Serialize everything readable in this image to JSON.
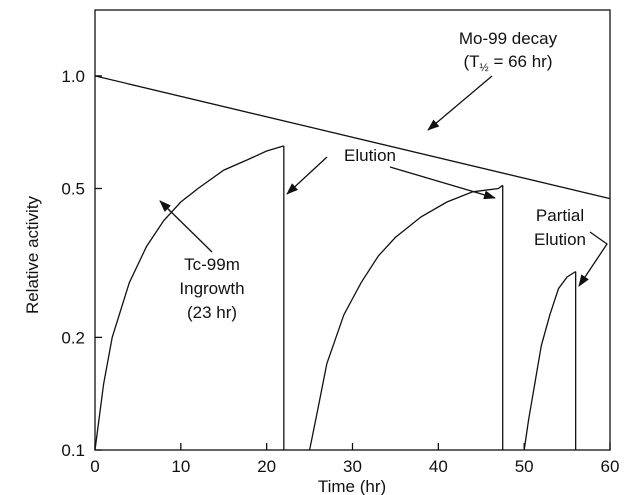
{
  "chart_data": {
    "type": "line",
    "title": "",
    "xlabel": "Time (hr)",
    "ylabel": "Relative activity",
    "x_scale": "linear",
    "y_scale": "log",
    "xlim": [
      0,
      60
    ],
    "ylim": [
      0.1,
      1.5
    ],
    "x_ticks": [
      "0",
      "10",
      "20",
      "30",
      "40",
      "50",
      "60"
    ],
    "y_ticks": [
      "0.1",
      "0.2",
      "0.5",
      "1.0"
    ],
    "x_tick_values": [
      0,
      10,
      20,
      30,
      40,
      50,
      60
    ],
    "y_tick_values": [
      0.1,
      0.2,
      0.5,
      1.0
    ],
    "grid": false,
    "series": [
      {
        "id": "mo99",
        "x": [
          0,
          60
        ],
        "y": [
          1.0,
          0.47
        ]
      },
      {
        "id": "tc_growth_1",
        "x": [
          0,
          1,
          2,
          4,
          6,
          8,
          10,
          12,
          15,
          18,
          20,
          22
        ],
        "y": [
          0.1,
          0.15,
          0.2,
          0.28,
          0.35,
          0.41,
          0.46,
          0.5,
          0.56,
          0.6,
          0.63,
          0.65
        ]
      },
      {
        "id": "tc_growth_2",
        "x": [
          25,
          26,
          27,
          29,
          31,
          33,
          35,
          38,
          41,
          44,
          47,
          47.5
        ],
        "y": [
          0.1,
          0.13,
          0.17,
          0.23,
          0.28,
          0.33,
          0.37,
          0.42,
          0.46,
          0.49,
          0.5,
          0.51
        ]
      },
      {
        "id": "tc_growth_3",
        "x": [
          50,
          50.5,
          51,
          52,
          53,
          54,
          55,
          56
        ],
        "y": [
          0.1,
          0.12,
          0.14,
          0.19,
          0.23,
          0.27,
          0.29,
          0.3
        ]
      }
    ],
    "elutions": [
      {
        "x": 22,
        "from": 0.65,
        "to": 0.1
      },
      {
        "x": 47.5,
        "from": 0.51,
        "to": 0.1
      },
      {
        "x": 56,
        "from": 0.3,
        "to": 0.1
      }
    ],
    "annotations": {
      "mo99_line1": "Mo-99 decay",
      "mo99_line2_a": "(T",
      "mo99_line2_sub": "½",
      "mo99_line2_b": " = 66 hr)",
      "elution": "Elution",
      "tc_line1": "Tc-99m",
      "tc_line2": "Ingrowth",
      "tc_line3": "(23 hr)",
      "partial_line1": "Partial",
      "partial_line2": "Elution"
    }
  }
}
